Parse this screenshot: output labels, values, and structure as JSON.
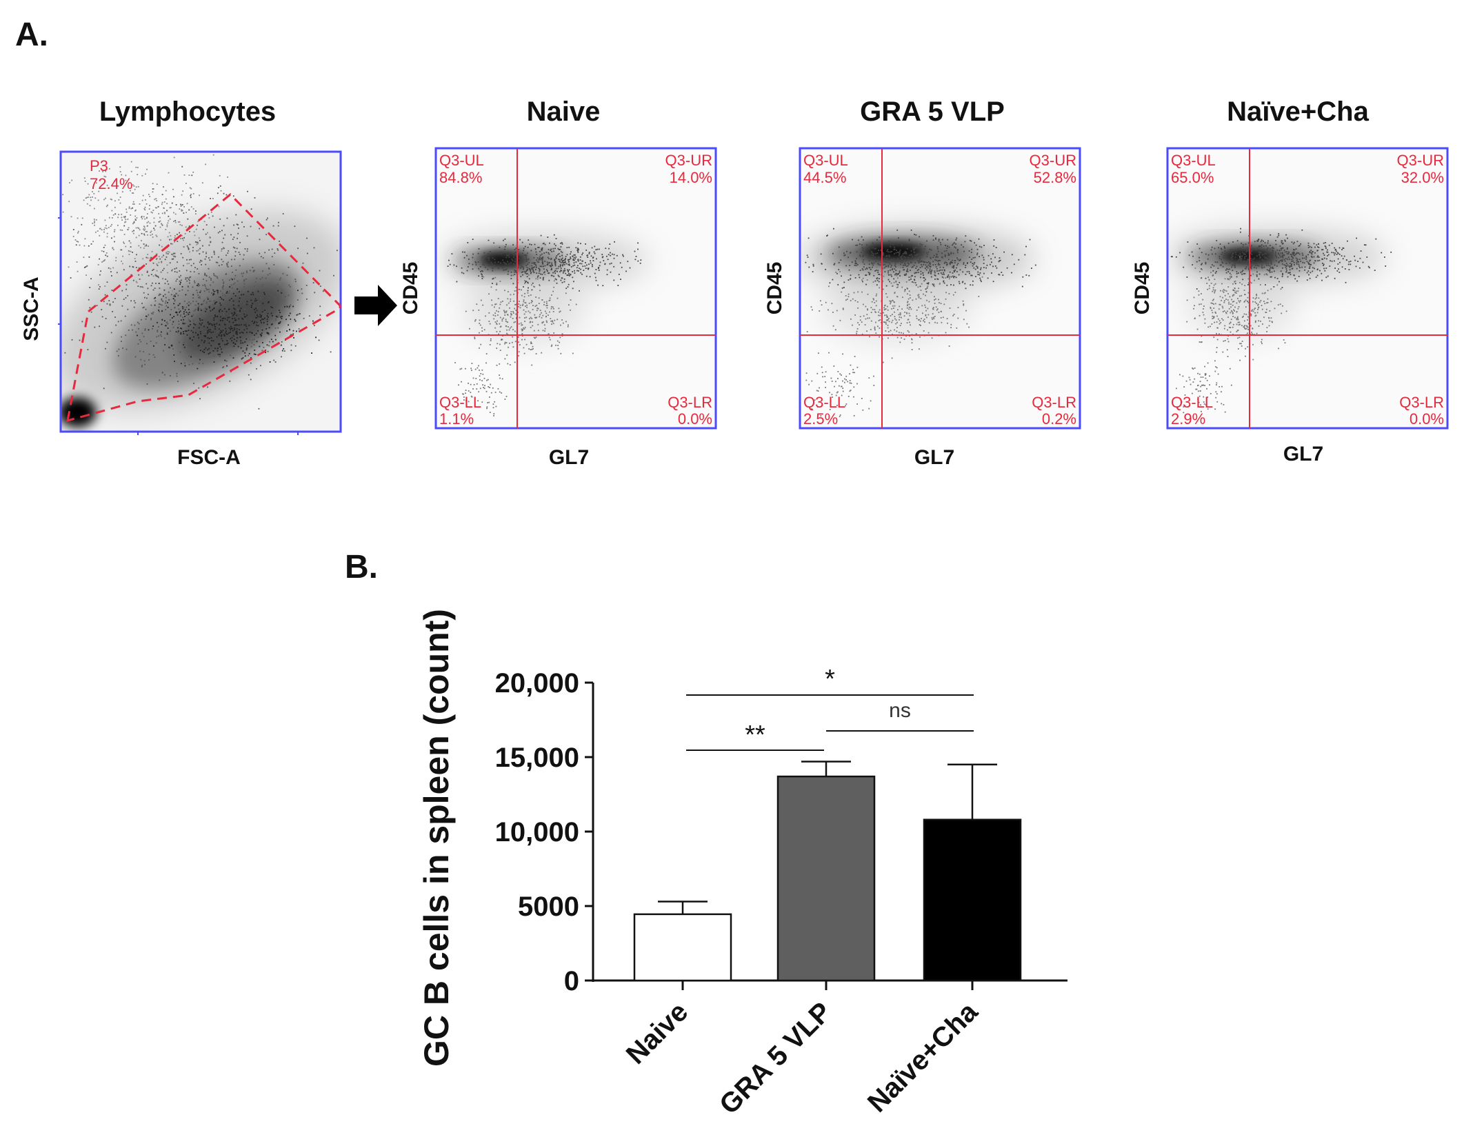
{
  "panel_a_label": "A.",
  "panel_b_label": "B.",
  "flow_panels": [
    {
      "title": "Lymphocytes",
      "xlabel": "FSC-A",
      "ylabel": "SSC-A",
      "gate_name": "P3",
      "gate_pct": "72.4%"
    },
    {
      "title": "Naive",
      "xlabel": "GL7",
      "ylabel": "CD45",
      "q": {
        "ul": "Q3-UL",
        "ur": "Q3-UR",
        "ll": "Q3-LL",
        "lr": "Q3-LR"
      },
      "pct": {
        "ul": "84.8%",
        "ur": "14.0%",
        "ll": "1.1%",
        "lr": "0.0%"
      }
    },
    {
      "title": "GRA 5 VLP",
      "xlabel": "GL7",
      "ylabel": "CD45",
      "q": {
        "ul": "Q3-UL",
        "ur": "Q3-UR",
        "ll": "Q3-LL",
        "lr": "Q3-LR"
      },
      "pct": {
        "ul": "44.5%",
        "ur": "52.8%",
        "ll": "2.5%",
        "lr": "0.2%"
      }
    },
    {
      "title": "Naïve+Cha",
      "xlabel": "GL7",
      "ylabel": "CD45",
      "q": {
        "ul": "Q3-UL",
        "ur": "Q3-UR",
        "ll": "Q3-LL",
        "lr": "Q3-LR"
      },
      "pct": {
        "ul": "65.0%",
        "ur": "32.0%",
        "ll": "2.9%",
        "lr": "0.0%"
      }
    }
  ],
  "chart_data": {
    "type": "bar",
    "title": "",
    "xlabel": "",
    "ylabel": "GC B cells in spleen (count)",
    "categories": [
      "Naive",
      "GRA 5 VLP",
      "Naïve+Cha"
    ],
    "values": [
      4450,
      13700,
      10800
    ],
    "errors": [
      850,
      1000,
      3700
    ],
    "bar_colors": [
      "#ffffff",
      "#5f5f5f",
      "#000000"
    ],
    "ylim": [
      0,
      20000
    ],
    "yticks": [
      0,
      5000,
      10000,
      15000,
      20000
    ],
    "ytick_labels": [
      "0",
      "5000",
      "10,000",
      "15,000",
      "20,000"
    ],
    "significance": [
      {
        "from": 0,
        "to": 1,
        "label": "**"
      },
      {
        "from": 0,
        "to": 2,
        "label": "*"
      },
      {
        "from": 1,
        "to": 2,
        "label": "ns"
      }
    ]
  },
  "colors": {
    "gate": "#e8283c",
    "frame": "#4a4aff",
    "ink": "#111111"
  }
}
